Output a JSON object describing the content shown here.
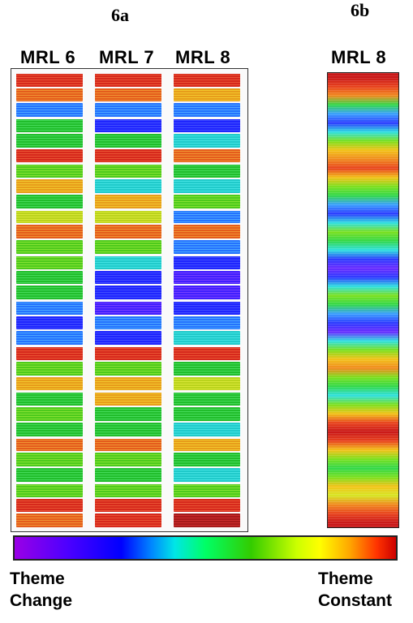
{
  "figure": {
    "label_a": "6a",
    "label_b": "6b",
    "columns": [
      "MRL 6",
      "MRL 7",
      "MRL 8"
    ],
    "single_column": "MRL 8",
    "scale_left": [
      "Theme",
      "Change"
    ],
    "scale_right": [
      "Theme",
      "Constant"
    ]
  },
  "colors": {
    "palette": [
      "#b04cff",
      "#6a2cff",
      "#2d3cff",
      "#3aa0ff",
      "#2fe0e0",
      "#32d84a",
      "#7be01e",
      "#d6e623",
      "#f2c218",
      "#f08a1e",
      "#e8431e",
      "#c91818"
    ]
  },
  "strips": {
    "mrl6": [
      10,
      9,
      3,
      5,
      5,
      10,
      6,
      8,
      5,
      7,
      9,
      6,
      6,
      5,
      5,
      3,
      2,
      3,
      10,
      6,
      8,
      5,
      6,
      5,
      9,
      6,
      5,
      6,
      10,
      9
    ],
    "mrl7": [
      10,
      9,
      3,
      2,
      5,
      10,
      6,
      4,
      8,
      7,
      9,
      6,
      4,
      2,
      2,
      1,
      3,
      2,
      10,
      6,
      8,
      8,
      5,
      5,
      9,
      6,
      5,
      6,
      10,
      10
    ],
    "mrl8": [
      10,
      8,
      3,
      2,
      4,
      9,
      5,
      4,
      6,
      3,
      9,
      3,
      2,
      1,
      1,
      2,
      3,
      4,
      10,
      5,
      7,
      5,
      5,
      4,
      8,
      5,
      4,
      6,
      10,
      11
    ],
    "mrl8_smooth": [
      11,
      10,
      9,
      5,
      3,
      2,
      4,
      6,
      8,
      9,
      10,
      8,
      6,
      5,
      3,
      2,
      4,
      6,
      5,
      4,
      2,
      1,
      2,
      4,
      6,
      5,
      3,
      2,
      1,
      4,
      6,
      8,
      9,
      6,
      5,
      4,
      6,
      8,
      10,
      11,
      10,
      8,
      6,
      5,
      6,
      8,
      7,
      9,
      10,
      11
    ]
  }
}
